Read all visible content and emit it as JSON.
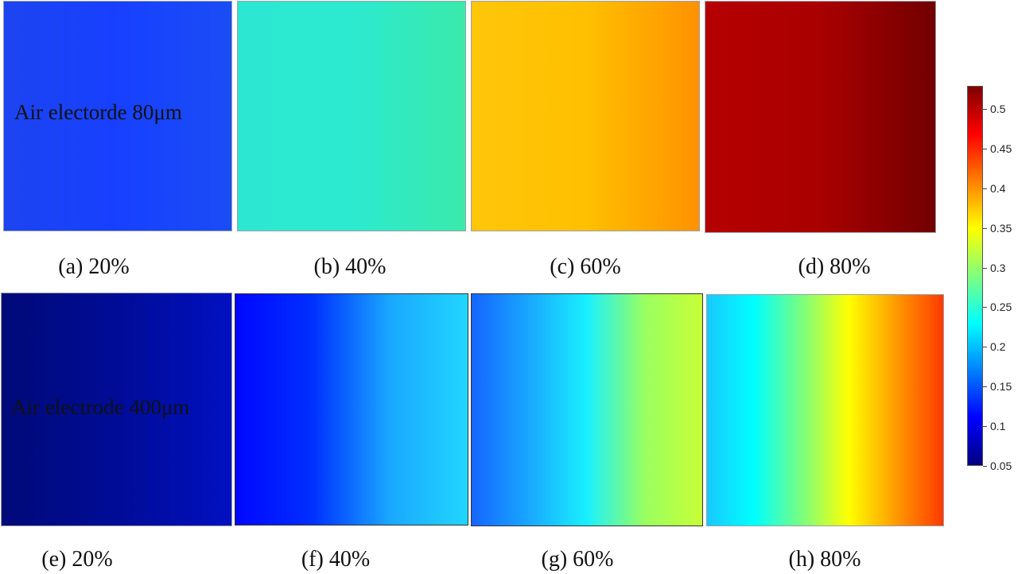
{
  "rows": [
    {
      "overlay_label": "Air electorde 80μm",
      "panels": [
        {
          "caption": "(a) 20%",
          "gradient": [
            "#1c44f0",
            "#1740ff",
            "#1a4df5"
          ]
        },
        {
          "caption": "(b) 40%",
          "gradient": [
            "#2ce8d2",
            "#2cead0",
            "#3aeaaa"
          ]
        },
        {
          "caption": "(c) 60%",
          "gradient": [
            "#ffc60a",
            "#ffc000",
            "#ff9200"
          ]
        },
        {
          "caption": "(d) 80%",
          "gradient": [
            "#b50000",
            "#a90000",
            "#720000"
          ]
        }
      ]
    },
    {
      "overlay_label": "Air electrode 400μm",
      "panels": [
        {
          "caption": "(e) 20%",
          "gradient": [
            "#000a78",
            "#000c96",
            "#0010c0"
          ]
        },
        {
          "caption": "(f) 40%",
          "gradient": [
            "#0006ff",
            "#0030ff",
            "#1aa8ff",
            "#21d6ff"
          ]
        },
        {
          "caption": "(g) 60%",
          "gradient": [
            "#1565ff",
            "#19a8ff",
            "#19f0ff",
            "#9aff60",
            "#c8ff38"
          ]
        },
        {
          "caption": "(h) 80%",
          "gradient": [
            "#19c8ff",
            "#00ffff",
            "#7aff80",
            "#ffff00",
            "#ff9a00",
            "#ff3a00"
          ]
        }
      ]
    }
  ],
  "colorbar": {
    "ticks": [
      "0.5",
      "0.45",
      "0.4",
      "0.35",
      "0.3",
      "0.25",
      "0.2",
      "0.15",
      "0.1",
      "0.05"
    ],
    "colormap": [
      "#800000",
      "#ff0000",
      "#ff8000",
      "#ffff00",
      "#80ff80",
      "#00ffff",
      "#0080ff",
      "#0000ff",
      "#000080"
    ]
  }
}
